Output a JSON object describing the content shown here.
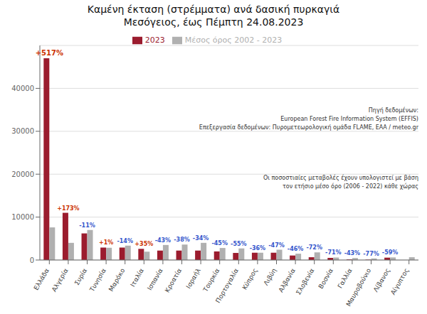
{
  "chart_data": {
    "type": "bar",
    "title": "Καμένη έκταση (στρέμματα) ανά δασική πυρκαγιά",
    "subtitle": "Μεσόγειος, έως Πέμπτη 24.08.2023",
    "categories": [
      "Ελλάδα",
      "Αλγερία",
      "Συρία",
      "Τυνησία",
      "Μαρόκο",
      "Ιταλία",
      "Ισπανία",
      "Κροατία",
      "Ισραήλ",
      "Τουρκία",
      "Πορτογαλία",
      "Κύπρος",
      "Λιβύη",
      "Αλβανία",
      "Σλοβενία",
      "Βοσνία",
      "Γαλλία",
      "Μαυροβούνιο",
      "Λίβανος",
      "Αίγυπτος"
    ],
    "series": [
      {
        "name": "2023",
        "color": "#9b1c2e",
        "values": [
          47000,
          11000,
          6200,
          2900,
          2900,
          2600,
          2200,
          2200,
          2200,
          2000,
          1650,
          1700,
          1700,
          1050,
          650,
          500,
          130,
          80,
          550,
          0
        ]
      },
      {
        "name": "Μέσος όρος 2002 - 2023",
        "color": "#b0b0b0",
        "values": [
          7600,
          4000,
          7000,
          2850,
          3350,
          1940,
          3500,
          3600,
          4000,
          2800,
          2700,
          1700,
          2400,
          1470,
          1780,
          580,
          460,
          360,
          600,
          650
        ]
      }
    ],
    "ylim": [
      0,
      50000
    ],
    "yticks": [
      0,
      10000,
      20000,
      30000,
      40000
    ],
    "grid": true,
    "legend": "top",
    "annotations": [
      {
        "category": "Ελλάδα",
        "text": "+517%",
        "color": "#cc3300"
      },
      {
        "category": "Αλγερία",
        "text": "+173%",
        "color": "#cc3300"
      },
      {
        "category": "Συρία",
        "text": "-11%",
        "color": "#3355cc"
      },
      {
        "category": "Τυνησία",
        "text": "+1%",
        "color": "#cc3300"
      },
      {
        "category": "Μαρόκο",
        "text": "-14%",
        "color": "#3355cc"
      },
      {
        "category": "Ιταλία",
        "text": "+35%",
        "color": "#cc3300"
      },
      {
        "category": "Ισπανία",
        "text": "-43%",
        "color": "#3355cc"
      },
      {
        "category": "Κροατία",
        "text": "-38%",
        "color": "#3355cc"
      },
      {
        "category": "Ισραήλ",
        "text": "-34%",
        "color": "#3355cc"
      },
      {
        "category": "Τουρκία",
        "text": "-45%",
        "color": "#3355cc"
      },
      {
        "category": "Πορτογαλία",
        "text": "-55%",
        "color": "#3355cc"
      },
      {
        "category": "Κύπρος",
        "text": "-36%",
        "color": "#3355cc"
      },
      {
        "category": "Λιβύη",
        "text": "-47%",
        "color": "#3355cc"
      },
      {
        "category": "Αλβανία",
        "text": "-46%",
        "color": "#3355cc"
      },
      {
        "category": "Σλοβενία",
        "text": "-72%",
        "color": "#3355cc"
      },
      {
        "category": "Βοσνία",
        "text": "-71%",
        "color": "#3355cc"
      },
      {
        "category": "Γαλλία",
        "text": "-43%",
        "color": "#3355cc"
      },
      {
        "category": "Μαυροβούνιο",
        "text": "-77%",
        "color": "#3355cc"
      },
      {
        "category": "Λίβανος",
        "text": "-59%",
        "color": "#3355cc"
      },
      {
        "text": "Πηγή δεδομένων:\nEuropean Forest Fire Information System (EFFIS)\nΕπεξεργασία δεδομένων: Πυρομετεωρολογική ομάδα FLAME, ΕΑΑ / meteo.gr"
      },
      {
        "text": "Οι ποσοστιαίες μεταβολές έχουν υπολογιστεί με βάση\nτον ετήσιο μέσο όρο (2006 - 2022) κάθε χώρας"
      }
    ]
  }
}
